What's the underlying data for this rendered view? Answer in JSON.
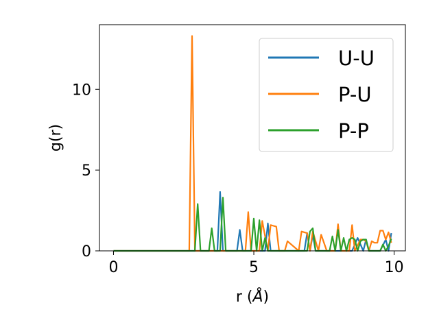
{
  "chart_data": {
    "type": "line",
    "xlabel_main": "r (",
    "xlabel_unit": "Å",
    "xlabel_end": ")",
    "ylabel": "g(r)",
    "xlim": [
      -0.5,
      10.4
    ],
    "ylim": [
      0,
      14
    ],
    "xticks": [
      0,
      5,
      10
    ],
    "xtick_labels": [
      "0",
      "5",
      "10"
    ],
    "yticks": [
      0,
      5,
      10
    ],
    "ytick_labels": [
      "0",
      "5",
      "10"
    ],
    "grid": false,
    "legend_position": "upper right",
    "series": [
      {
        "name": "U-U",
        "color": "#1f77b4",
        "x": [
          0,
          0.5,
          1,
          1.5,
          2,
          2.5,
          3.0,
          3.5,
          3.6,
          3.7,
          3.8,
          3.9,
          4.4,
          4.5,
          4.6,
          5.0,
          5.2,
          5.4,
          5.5,
          5.6,
          5.7,
          6.5,
          6.8,
          6.9,
          7.0,
          7.1,
          7.2,
          7.5,
          8.0,
          8.5,
          8.7,
          8.9,
          9.0,
          9.1,
          9.5,
          9.7,
          9.8,
          9.9
        ],
        "y": [
          0,
          0,
          0,
          0,
          0,
          0,
          0,
          0,
          0,
          0,
          3.65,
          0,
          0,
          1.3,
          0,
          0,
          0,
          0,
          1.7,
          0,
          0,
          0,
          0,
          1.1,
          0,
          1.0,
          0,
          0,
          0,
          0,
          0.8,
          0,
          0.7,
          0,
          0,
          0.7,
          0,
          1.1
        ]
      },
      {
        "name": "P-U",
        "color": "#ff7f0e",
        "x": [
          0,
          0.5,
          1,
          1.5,
          2,
          2.5,
          2.7,
          2.8,
          2.9,
          3.0,
          4.7,
          4.8,
          4.9,
          5.2,
          5.3,
          5.5,
          5.6,
          5.7,
          5.8,
          5.9,
          6.1,
          6.2,
          6.6,
          6.7,
          6.8,
          6.9,
          7.0,
          7.1,
          7.2,
          7.3,
          7.4,
          7.6,
          7.9,
          8.0,
          8.1,
          8.3,
          8.4,
          8.5,
          8.6,
          8.8,
          8.9,
          9.0,
          9.1,
          9.2,
          9.3,
          9.4,
          9.5,
          9.6,
          9.7,
          9.8,
          9.9
        ],
        "y": [
          0,
          0,
          0,
          0,
          0,
          0,
          0,
          13.3,
          0,
          0,
          0,
          2.4,
          0,
          0,
          1.85,
          0,
          1.6,
          1.55,
          1.5,
          0,
          0,
          0.6,
          0,
          1.2,
          1.15,
          1.1,
          0,
          1.2,
          0.6,
          0,
          1.0,
          0,
          0,
          1.65,
          0,
          0,
          0,
          1.6,
          0,
          0.7,
          0.7,
          0.6,
          0,
          0.6,
          0.5,
          0.5,
          1.25,
          1.25,
          0.7,
          1.15,
          0.5
        ]
      },
      {
        "name": "P-P",
        "color": "#2ca02c",
        "x": [
          0,
          0.5,
          1,
          1.5,
          2,
          2.5,
          2.9,
          3.0,
          3.1,
          3.4,
          3.5,
          3.6,
          3.8,
          3.9,
          4.0,
          4.9,
          5.0,
          5.1,
          5.2,
          5.3,
          5.4,
          5.5,
          5.6,
          6.5,
          6.9,
          7.0,
          7.1,
          7.2,
          7.5,
          7.6,
          7.7,
          7.8,
          7.9,
          8.0,
          8.1,
          8.2,
          8.3,
          8.4,
          8.5,
          8.6,
          8.7,
          8.8,
          8.9,
          9.0,
          9.1,
          9.2,
          9.3,
          9.5,
          9.6,
          9.7,
          9.8,
          9.9
        ],
        "y": [
          0,
          0,
          0,
          0,
          0,
          0,
          0,
          2.9,
          0,
          0,
          1.4,
          0,
          0,
          3.3,
          0,
          0,
          2.0,
          0,
          1.9,
          0,
          0.8,
          0,
          0,
          0,
          0,
          1.2,
          1.4,
          0,
          0,
          0,
          0,
          0.9,
          0,
          1.3,
          0,
          0.8,
          0,
          0.7,
          0.8,
          0.7,
          0,
          0.6,
          0.7,
          0.7,
          0,
          0,
          0,
          0,
          0.4,
          0,
          0.3,
          0.75
        ]
      }
    ]
  }
}
